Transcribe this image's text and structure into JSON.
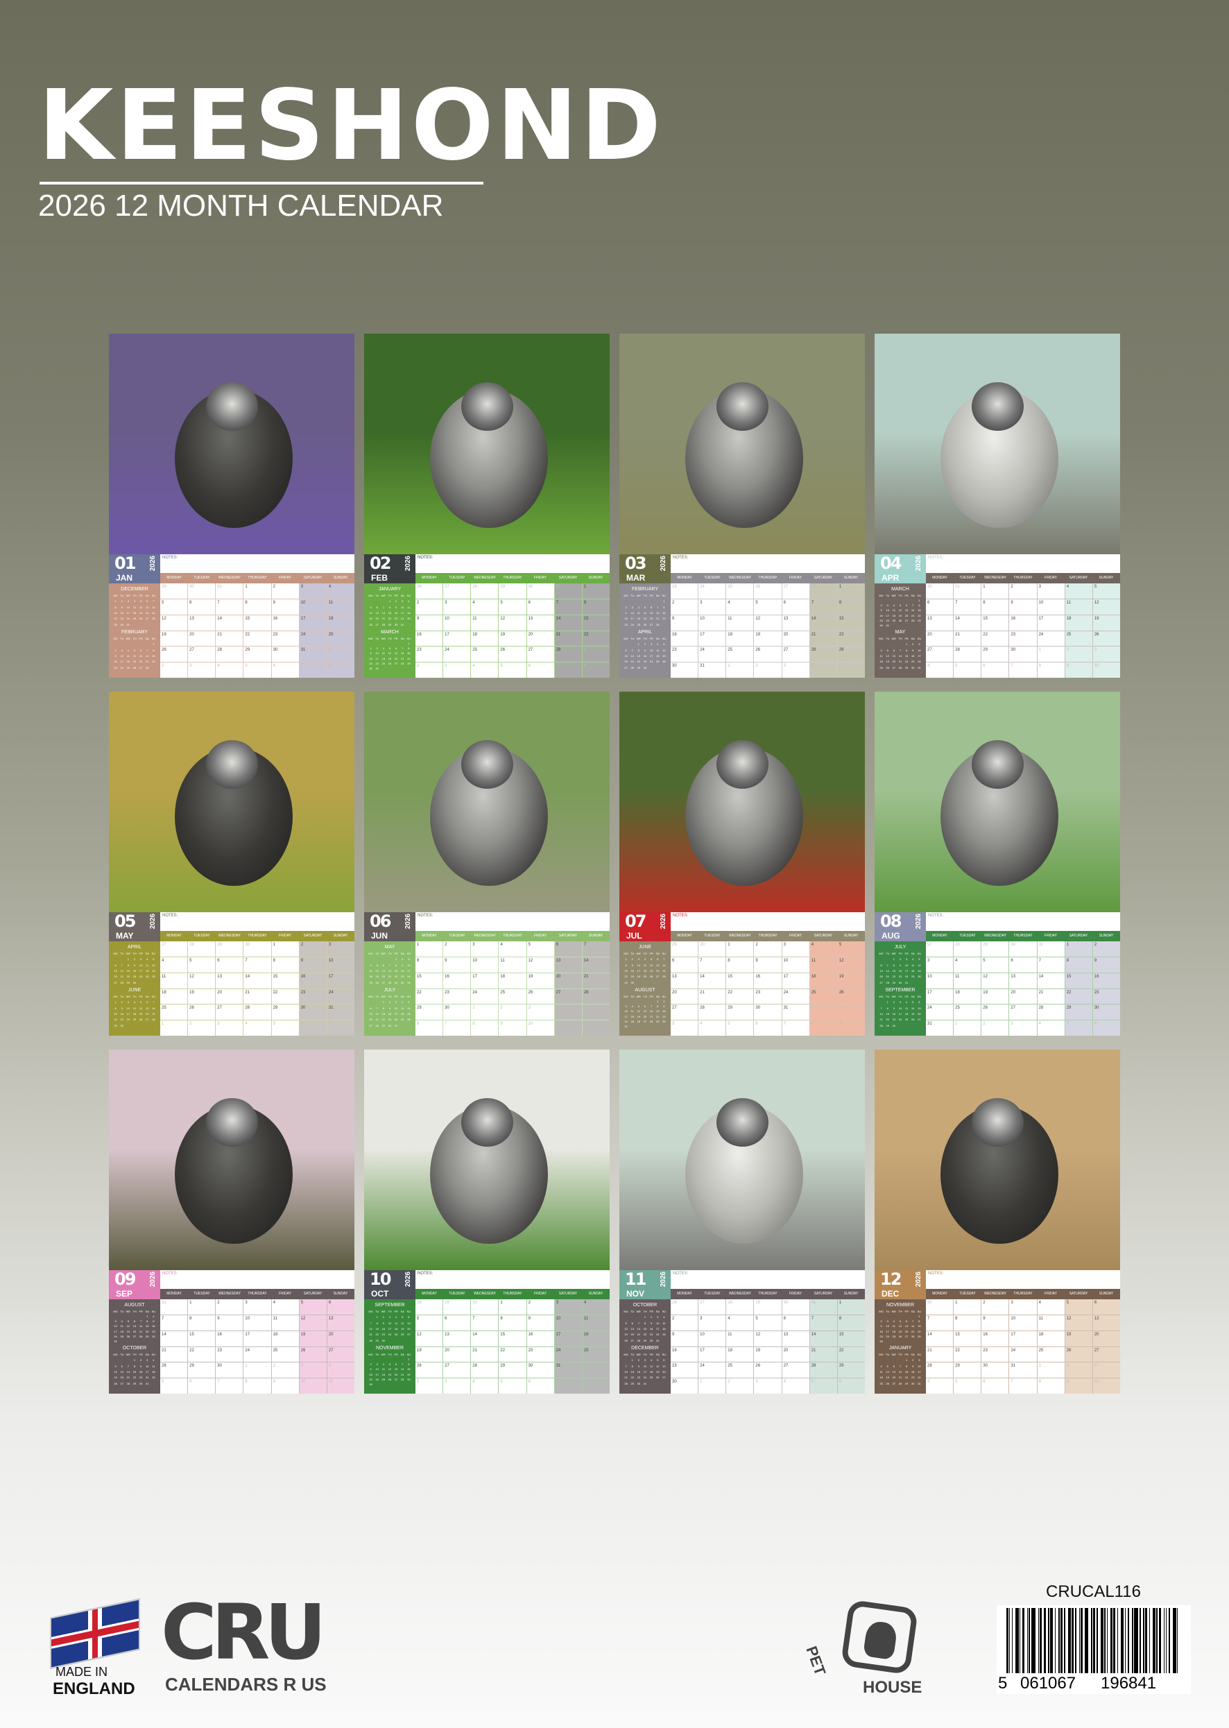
{
  "cover": {
    "title": "KEESHOND",
    "subtitle": "2026 12 MONTH CALENDAR"
  },
  "year": 2026,
  "notes_label": "NOTES:",
  "weekdays": [
    "MONDAY",
    "TUESDAY",
    "WEDNESDAY",
    "THURSDAY",
    "FRIDAY",
    "SATURDAY",
    "SUNDAY"
  ],
  "mini_weekdays": [
    "MO",
    "TU",
    "WE",
    "TH",
    "FR",
    "SA",
    "SU"
  ],
  "months": [
    {
      "num": "01",
      "abbr": "JAN",
      "prev": "DECEMBER",
      "next": "FEBRUARY",
      "block": "#6a7399",
      "side": "#c49580",
      "wkend": "#c8c6d6",
      "line": "#e0c3b6",
      "sky": "#6a5c8a",
      "ground": "#6d58a8",
      "dog": "dark"
    },
    {
      "num": "02",
      "abbr": "FEB",
      "prev": "JANUARY",
      "next": "MARCH",
      "block": "#3a3f3f",
      "side": "#6aae45",
      "wkend": "#a9a9a9",
      "line": "#a9d38e",
      "sky": "#3c6a28",
      "ground": "#6fa83a",
      "dog": "grey"
    },
    {
      "num": "03",
      "abbr": "MAR",
      "prev": "FEBRUARY",
      "next": "APRIL",
      "block": "#6b6e45",
      "side": "#8f8c93",
      "wkend": "#c6c6b3",
      "line": "#c9c7cc",
      "sky": "#8a8f70",
      "ground": "#8a8a5a",
      "dog": "grey"
    },
    {
      "num": "04",
      "abbr": "APR",
      "prev": "MARCH",
      "next": "MAY",
      "block": "#9fd3cc",
      "side": "#716560",
      "wkend": "#dcefeb",
      "line": "#c9c1bd",
      "sky": "#b6cfc6",
      "ground": "#7a7a6e",
      "dog": "light"
    },
    {
      "num": "05",
      "abbr": "MAY",
      "prev": "APRIL",
      "next": "JUNE",
      "block": "#6d6562",
      "side": "#9d9a35",
      "wkend": "#c8c4c0",
      "line": "#d2d09a",
      "sky": "#b8a24a",
      "ground": "#8aa33a",
      "dog": "dark"
    },
    {
      "num": "06",
      "abbr": "JUN",
      "prev": "MAY",
      "next": "JULY",
      "block": "#625c5a",
      "side": "#8cbd6a",
      "wkend": "#bdbbb8",
      "line": "#c2dcae",
      "sky": "#7c9c5a",
      "ground": "#9a9a80",
      "dog": "grey"
    },
    {
      "num": "07",
      "abbr": "JUL",
      "prev": "JUNE",
      "next": "AUGUST",
      "block": "#cc2229",
      "side": "#918a6e",
      "wkend": "#efbaa5",
      "line": "#cdc8b6",
      "sky": "#4f6a30",
      "ground": "#b93026",
      "dog": "grey"
    },
    {
      "num": "08",
      "abbr": "AUG",
      "prev": "JULY",
      "next": "SEPTEMBER",
      "block": "#8b8fae",
      "side": "#3b8a45",
      "wkend": "#d6d6e2",
      "line": "#a6cfa8",
      "sky": "#9fc090",
      "ground": "#5f9a40",
      "dog": "grey"
    },
    {
      "num": "09",
      "abbr": "SEP",
      "prev": "AUGUST",
      "next": "OCTOBER",
      "block": "#e07bb5",
      "side": "#655b5c",
      "wkend": "#f4cfe3",
      "line": "#c4bcbd",
      "sky": "#d9c4cc",
      "ground": "#5a5a3e",
      "dog": "dark"
    },
    {
      "num": "10",
      "abbr": "OCT",
      "prev": "SEPTEMBER",
      "next": "NOVEMBER",
      "block": "#4b4f57",
      "side": "#3a8a3c",
      "wkend": "#b8b8b8",
      "line": "#a6cfa8",
      "sky": "#e8e8e2",
      "ground": "#4e8a32",
      "dog": "grey"
    },
    {
      "num": "11",
      "abbr": "NOV",
      "prev": "OCTOBER",
      "next": "DECEMBER",
      "block": "#6fa898",
      "side": "#655b5c",
      "wkend": "#d3e4dc",
      "line": "#c4bcbd",
      "sky": "#c9d8cc",
      "ground": "#7b7b78",
      "dog": "light"
    },
    {
      "num": "12",
      "abbr": "DEC",
      "prev": "NOVEMBER",
      "next": "JANUARY",
      "block": "#b78752",
      "side": "#765e4c",
      "wkend": "#ead7c3",
      "line": "#cbbcb0",
      "sky": "#c9a878",
      "ground": "#a88a5a",
      "dog": "dark"
    }
  ],
  "footer": {
    "made_in": "MADE IN",
    "country": "ENGLAND",
    "brand": "CRU",
    "brand_sub": "CALENDARS R US",
    "pet": "PET",
    "house": "HOUSE",
    "product_code": "CRUCAL116",
    "barcode": [
      "5",
      "061067",
      "196841"
    ]
  }
}
